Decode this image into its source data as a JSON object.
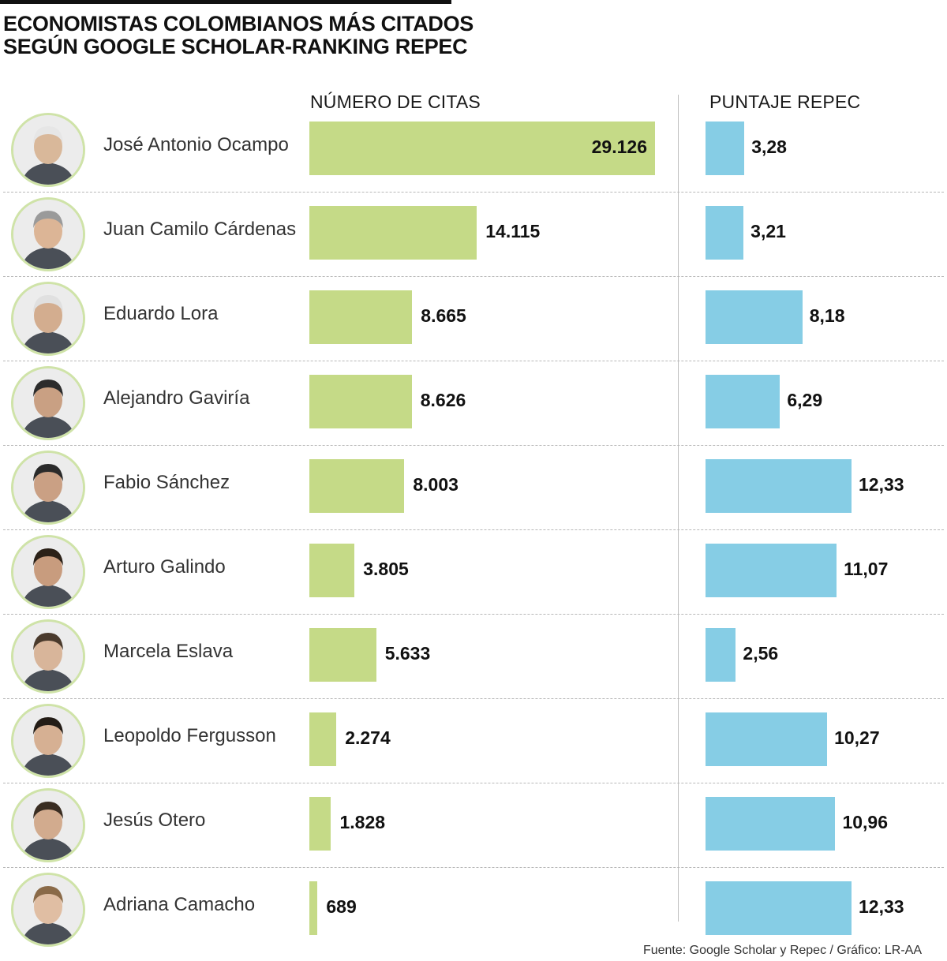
{
  "title_line1": "ECONOMISTAS COLOMBIANOS MÁS CITADOS",
  "title_line2": "SEGÚN GOOGLE SCHOLAR-RANKING REPEC",
  "source": "Fuente: Google Scholar y Repec / Gráfico: LR-AA",
  "colors": {
    "citas": "#c5da87",
    "repec": "#86cde5",
    "avatar_ring": "#cfe3a8"
  },
  "chart_data": {
    "type": "bar",
    "orientation": "horizontal",
    "categories": [
      "José Antonio Ocampo",
      "Juan Camilo Cárdenas",
      "Eduardo Lora",
      "Alejandro Gaviría",
      "Fabio Sánchez",
      "Arturo Galindo",
      "Marcela Eslava",
      "Leopoldo Fergusson",
      "Jesús Otero",
      "Adriana Camacho"
    ],
    "series": [
      {
        "name": "NÚMERO DE CITAS",
        "values": [
          29126,
          14115,
          8665,
          8626,
          8003,
          3805,
          5633,
          2274,
          1828,
          689
        ],
        "labels": [
          "29.126",
          "14.115",
          "8.665",
          "8.626",
          "8.003",
          "3.805",
          "5.633",
          "2.274",
          "1.828",
          "689"
        ]
      },
      {
        "name": "PUNTAJE REPEC",
        "values": [
          3.28,
          3.21,
          8.18,
          6.29,
          12.33,
          11.07,
          2.56,
          10.27,
          10.96,
          12.33
        ],
        "labels": [
          "3,28",
          "3,21",
          "8,18",
          "6,29",
          "12,33",
          "11,07",
          "2,56",
          "10,27",
          "10,96",
          "12,33"
        ]
      }
    ],
    "title": "ECONOMISTAS COLOMBIANOS MÁS CITADOS SEGÚN GOOGLE SCHOLAR-RANKING REPEC",
    "grid": false,
    "legend": "none"
  }
}
